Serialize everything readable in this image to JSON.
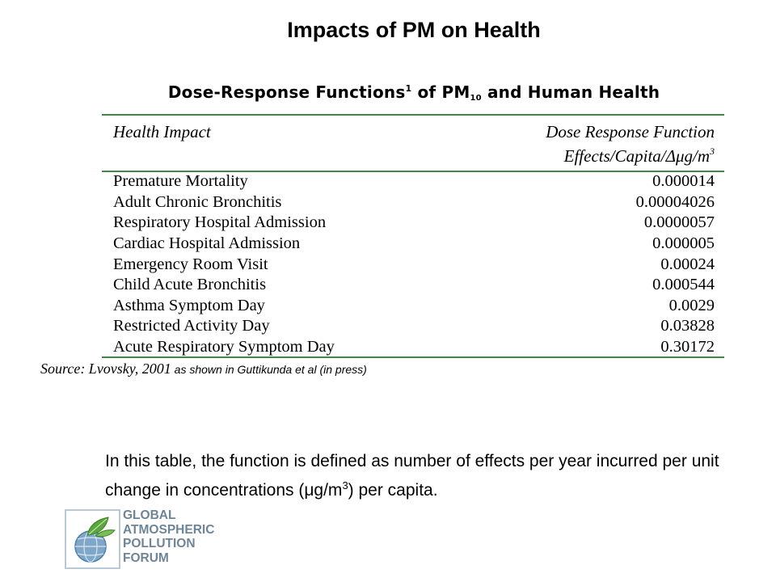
{
  "page": {
    "title": "Impacts of PM on Health"
  },
  "table": {
    "caption_prefix": "Dose-Response Functions",
    "caption_sup": "1",
    "caption_mid": " of PM",
    "caption_sub": "10",
    "caption_suffix": " and Human Health",
    "col_impact": "Health Impact",
    "col_function_line1": "Dose Response Function",
    "col_function_line2_prefix": "Effects/Capita/Δμg/m",
    "col_function_line2_sup": "3",
    "rows": [
      {
        "impact": "Premature Mortality",
        "value": "0.000014"
      },
      {
        "impact": "Adult Chronic Bronchitis",
        "value": "0.00004026"
      },
      {
        "impact": "Respiratory Hospital Admission",
        "value": "0.0000057"
      },
      {
        "impact": "Cardiac Hospital Admission",
        "value": "0.000005"
      },
      {
        "impact": "Emergency Room Visit",
        "value": "0.00024"
      },
      {
        "impact": "Child Acute Bronchitis",
        "value": "0.000544"
      },
      {
        "impact": "Asthma Symptom Day",
        "value": "0.0029"
      },
      {
        "impact": "Restricted Activity Day",
        "value": "0.03828"
      },
      {
        "impact": "Acute Respiratory Symptom Day",
        "value": "0.30172"
      }
    ],
    "source_main": "Source: Lvovsky, 2001",
    "source_note": " as shown in Guttikunda et al (in press)"
  },
  "note": {
    "text_before": "In this table, the function is defined as number of effects per year incurred per unit change in concentrations (μg/m",
    "sup": "3",
    "text_after": ") per capita."
  },
  "logo": {
    "lines": [
      "GLOBAL",
      "ATMOSPHERIC",
      "POLLUTION",
      "FORUM"
    ]
  },
  "colors": {
    "rule": "#3f8a3f",
    "logo_text": "#6e8598"
  }
}
